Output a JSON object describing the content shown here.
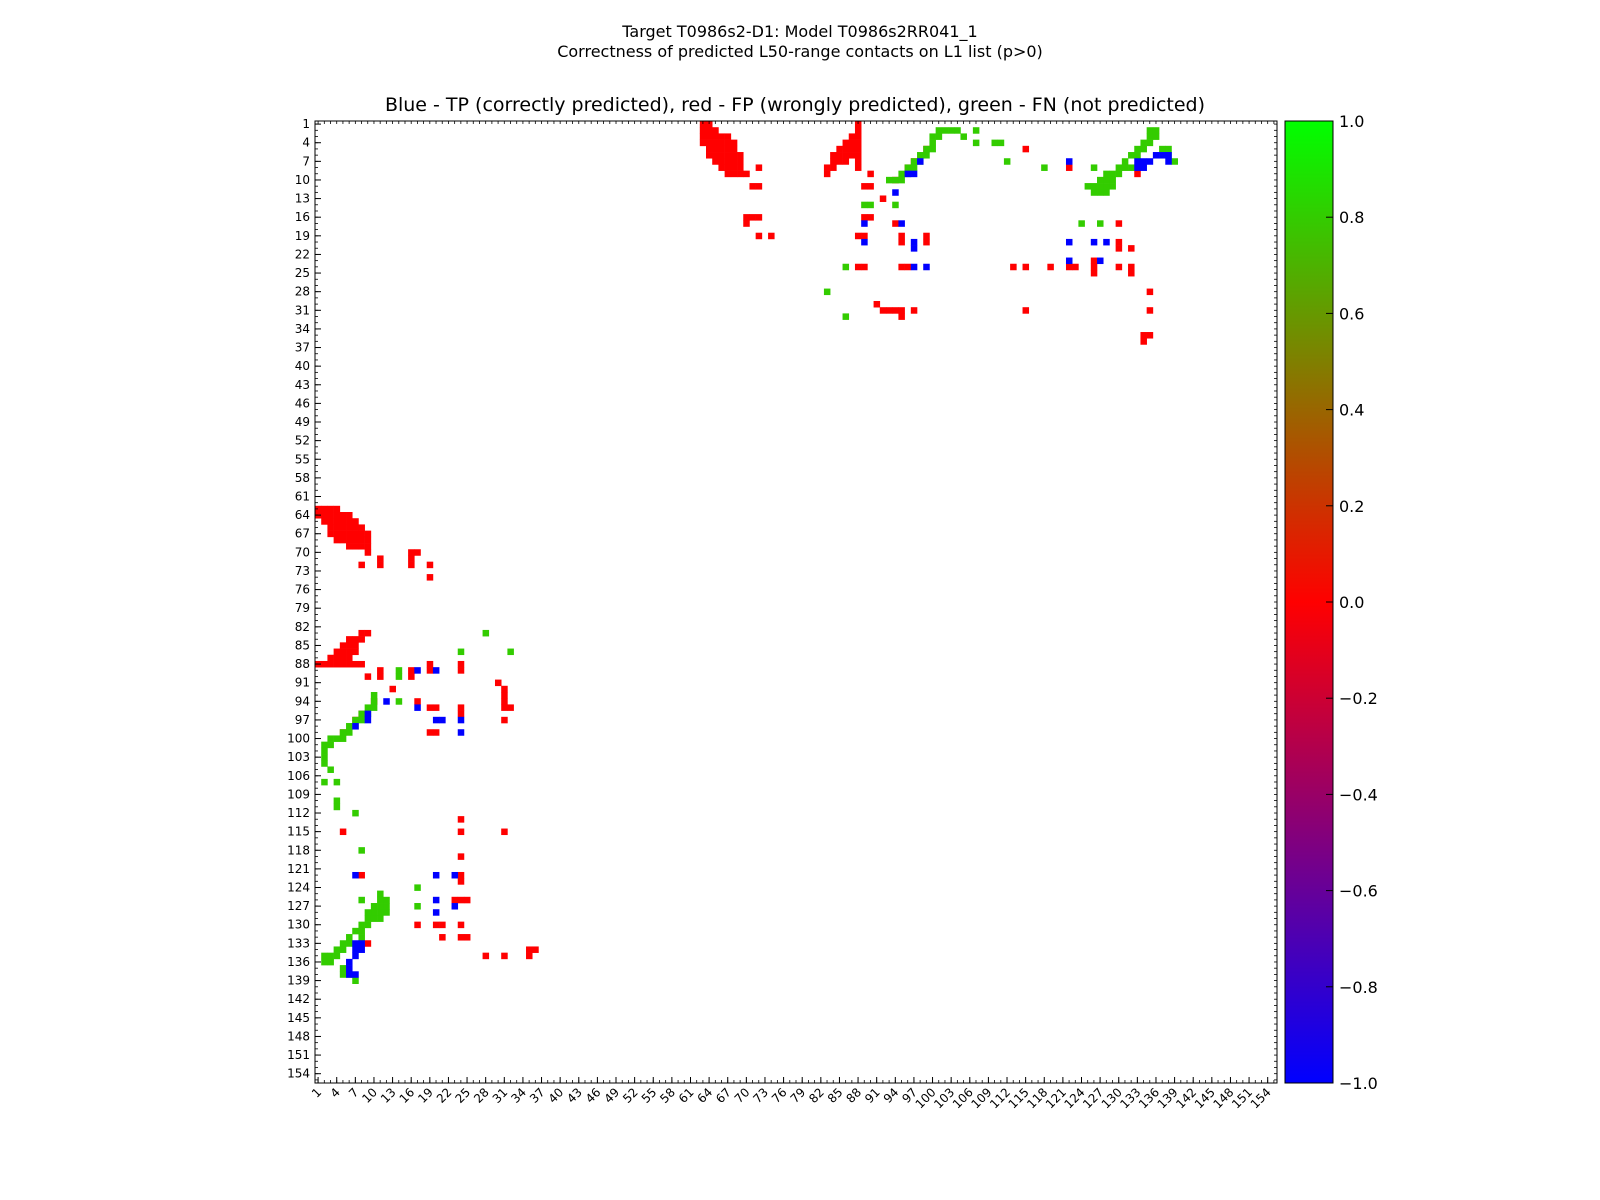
{
  "title_line1": "Target T0986s2-D1: Model T0986s2RR041_1",
  "title_line2": "Correctness of predicted L50-range contacts on L1 list (p>0)",
  "chart_data": {
    "type": "heatmap",
    "title": "Blue - TP (correctly predicted), red - FP (wrongly predicted), green - FN (not predicted)",
    "xlabel": "",
    "ylabel": "",
    "xlim": [
      1,
      155
    ],
    "ylim": [
      1,
      155
    ],
    "x_ticks": [
      1,
      4,
      7,
      10,
      13,
      16,
      19,
      22,
      25,
      28,
      31,
      34,
      37,
      40,
      43,
      46,
      49,
      52,
      55,
      58,
      61,
      64,
      67,
      70,
      73,
      76,
      79,
      82,
      85,
      88,
      91,
      94,
      97,
      100,
      103,
      106,
      109,
      112,
      115,
      118,
      121,
      124,
      127,
      130,
      133,
      136,
      139,
      142,
      145,
      148,
      151,
      154
    ],
    "y_ticks": [
      1,
      4,
      7,
      10,
      13,
      16,
      19,
      22,
      25,
      28,
      31,
      34,
      37,
      40,
      43,
      46,
      49,
      52,
      55,
      58,
      61,
      64,
      67,
      70,
      73,
      76,
      79,
      82,
      85,
      88,
      91,
      94,
      97,
      100,
      103,
      106,
      109,
      112,
      115,
      118,
      121,
      124,
      127,
      130,
      133,
      136,
      139,
      142,
      145,
      148,
      151,
      154
    ],
    "colorbar": {
      "min": -1.0,
      "max": 1.0,
      "ticks": [
        "1.0",
        "0.8",
        "0.6",
        "0.4",
        "0.2",
        "0.0",
        "−0.2",
        "−0.4",
        "−0.6",
        "−0.8",
        "−1.0"
      ],
      "colors": [
        "#0000ff",
        "#ff0000",
        "#00ff00"
      ]
    },
    "categories": {
      "TP": {
        "value": -1.0,
        "color": "#0000ff"
      },
      "FP": {
        "value": 0.0,
        "color": "#ff0000"
      },
      "FN": {
        "value": 0.8,
        "color": "#33cc00"
      }
    },
    "fp_contacts": [
      [
        63,
        1
      ],
      [
        63,
        2
      ],
      [
        63,
        3
      ],
      [
        63,
        4
      ],
      [
        64,
        1
      ],
      [
        64,
        2
      ],
      [
        64,
        3
      ],
      [
        64,
        4
      ],
      [
        64,
        5
      ],
      [
        64,
        6
      ],
      [
        65,
        2
      ],
      [
        65,
        3
      ],
      [
        65,
        4
      ],
      [
        65,
        5
      ],
      [
        65,
        6
      ],
      [
        65,
        7
      ],
      [
        66,
        3
      ],
      [
        66,
        4
      ],
      [
        66,
        5
      ],
      [
        66,
        6
      ],
      [
        66,
        7
      ],
      [
        66,
        8
      ],
      [
        67,
        3
      ],
      [
        67,
        4
      ],
      [
        67,
        5
      ],
      [
        67,
        6
      ],
      [
        67,
        7
      ],
      [
        67,
        8
      ],
      [
        67,
        9
      ],
      [
        68,
        4
      ],
      [
        68,
        5
      ],
      [
        68,
        6
      ],
      [
        68,
        7
      ],
      [
        68,
        8
      ],
      [
        68,
        9
      ],
      [
        69,
        6
      ],
      [
        69,
        7
      ],
      [
        69,
        8
      ],
      [
        69,
        9
      ],
      [
        70,
        9
      ],
      [
        70,
        16
      ],
      [
        71,
        16
      ],
      [
        70,
        17
      ],
      [
        71,
        11
      ],
      [
        72,
        8
      ],
      [
        72,
        11
      ],
      [
        72,
        16
      ],
      [
        72,
        19
      ],
      [
        74,
        19
      ],
      [
        83,
        8
      ],
      [
        83,
        9
      ],
      [
        84,
        6
      ],
      [
        84,
        7
      ],
      [
        84,
        8
      ],
      [
        85,
        5
      ],
      [
        85,
        6
      ],
      [
        85,
        7
      ],
      [
        86,
        4
      ],
      [
        86,
        5
      ],
      [
        86,
        6
      ],
      [
        86,
        7
      ],
      [
        87,
        3
      ],
      [
        87,
        4
      ],
      [
        87,
        5
      ],
      [
        87,
        6
      ],
      [
        88,
        1
      ],
      [
        88,
        2
      ],
      [
        88,
        3
      ],
      [
        88,
        4
      ],
      [
        88,
        5
      ],
      [
        88,
        6
      ],
      [
        88,
        7
      ],
      [
        88,
        8
      ],
      [
        89,
        11
      ],
      [
        89,
        16
      ],
      [
        89,
        19
      ],
      [
        88,
        19
      ],
      [
        89,
        24
      ],
      [
        88,
        24
      ],
      [
        90,
        16
      ],
      [
        90,
        9
      ],
      [
        90,
        11
      ],
      [
        91,
        30
      ],
      [
        92,
        31
      ],
      [
        93,
        31
      ],
      [
        94,
        31
      ],
      [
        95,
        32
      ],
      [
        95,
        31
      ],
      [
        97,
        31
      ],
      [
        94,
        17
      ],
      [
        95,
        19
      ],
      [
        95,
        20
      ],
      [
        95,
        24
      ],
      [
        96,
        8
      ],
      [
        99,
        5
      ],
      [
        99,
        20
      ],
      [
        99,
        19
      ],
      [
        97,
        7
      ],
      [
        94,
        10
      ],
      [
        92,
        13
      ],
      [
        96,
        24
      ],
      [
        115,
        5
      ],
      [
        115,
        24
      ],
      [
        115,
        31
      ],
      [
        113,
        24
      ],
      [
        119,
        24
      ],
      [
        122,
        8
      ],
      [
        122,
        24
      ],
      [
        123,
        24
      ],
      [
        126,
        24
      ],
      [
        126,
        25
      ],
      [
        126,
        23
      ],
      [
        130,
        17
      ],
      [
        130,
        20
      ],
      [
        130,
        21
      ],
      [
        130,
        24
      ],
      [
        132,
        21
      ],
      [
        132,
        24
      ],
      [
        132,
        25
      ],
      [
        133,
        9
      ],
      [
        135,
        28
      ],
      [
        135,
        31
      ],
      [
        134,
        35
      ],
      [
        134,
        36
      ],
      [
        135,
        35
      ]
    ],
    "tp_contacts": [
      [
        89,
        17
      ],
      [
        89,
        20
      ],
      [
        94,
        12
      ],
      [
        95,
        17
      ],
      [
        97,
        9
      ],
      [
        97,
        20
      ],
      [
        97,
        21
      ],
      [
        97,
        24
      ],
      [
        98,
        7
      ],
      [
        96,
        9
      ],
      [
        99,
        24
      ],
      [
        122,
        7
      ],
      [
        122,
        20
      ],
      [
        122,
        23
      ],
      [
        126,
        20
      ],
      [
        127,
        23
      ],
      [
        128,
        20
      ],
      [
        133,
        7
      ],
      [
        133,
        8
      ],
      [
        134,
        7
      ],
      [
        134,
        8
      ],
      [
        135,
        7
      ],
      [
        136,
        6
      ],
      [
        137,
        6
      ],
      [
        138,
        6
      ],
      [
        138,
        7
      ]
    ],
    "fn_contacts": [
      [
        83,
        28
      ],
      [
        86,
        24
      ],
      [
        86,
        32
      ],
      [
        89,
        14
      ],
      [
        90,
        14
      ],
      [
        93,
        10
      ],
      [
        94,
        14
      ],
      [
        94,
        10
      ],
      [
        95,
        9
      ],
      [
        95,
        10
      ],
      [
        96,
        8
      ],
      [
        96,
        9
      ],
      [
        97,
        7
      ],
      [
        97,
        8
      ],
      [
        98,
        6
      ],
      [
        98,
        7
      ],
      [
        99,
        5
      ],
      [
        99,
        6
      ],
      [
        100,
        3
      ],
      [
        100,
        4
      ],
      [
        100,
        5
      ],
      [
        101,
        2
      ],
      [
        101,
        3
      ],
      [
        102,
        2
      ],
      [
        103,
        2
      ],
      [
        104,
        2
      ],
      [
        105,
        3
      ],
      [
        107,
        2
      ],
      [
        107,
        4
      ],
      [
        110,
        4
      ],
      [
        111,
        4
      ],
      [
        112,
        7
      ],
      [
        118,
        8
      ],
      [
        124,
        17
      ],
      [
        126,
        8
      ],
      [
        125,
        11
      ],
      [
        126,
        11
      ],
      [
        126,
        12
      ],
      [
        127,
        12
      ],
      [
        127,
        11
      ],
      [
        127,
        10
      ],
      [
        127,
        17
      ],
      [
        128,
        10
      ],
      [
        128,
        11
      ],
      [
        128,
        9
      ],
      [
        128,
        12
      ],
      [
        129,
        9
      ],
      [
        129,
        10
      ],
      [
        129,
        11
      ],
      [
        130,
        8
      ],
      [
        130,
        9
      ],
      [
        131,
        8
      ],
      [
        131,
        7
      ],
      [
        132,
        8
      ],
      [
        132,
        6
      ],
      [
        133,
        5
      ],
      [
        133,
        6
      ],
      [
        134,
        4
      ],
      [
        134,
        5
      ],
      [
        135,
        2
      ],
      [
        135,
        3
      ],
      [
        135,
        4
      ],
      [
        136,
        2
      ],
      [
        136,
        3
      ],
      [
        137,
        5
      ],
      [
        138,
        5
      ],
      [
        138,
        6
      ],
      [
        139,
        7
      ]
    ]
  }
}
